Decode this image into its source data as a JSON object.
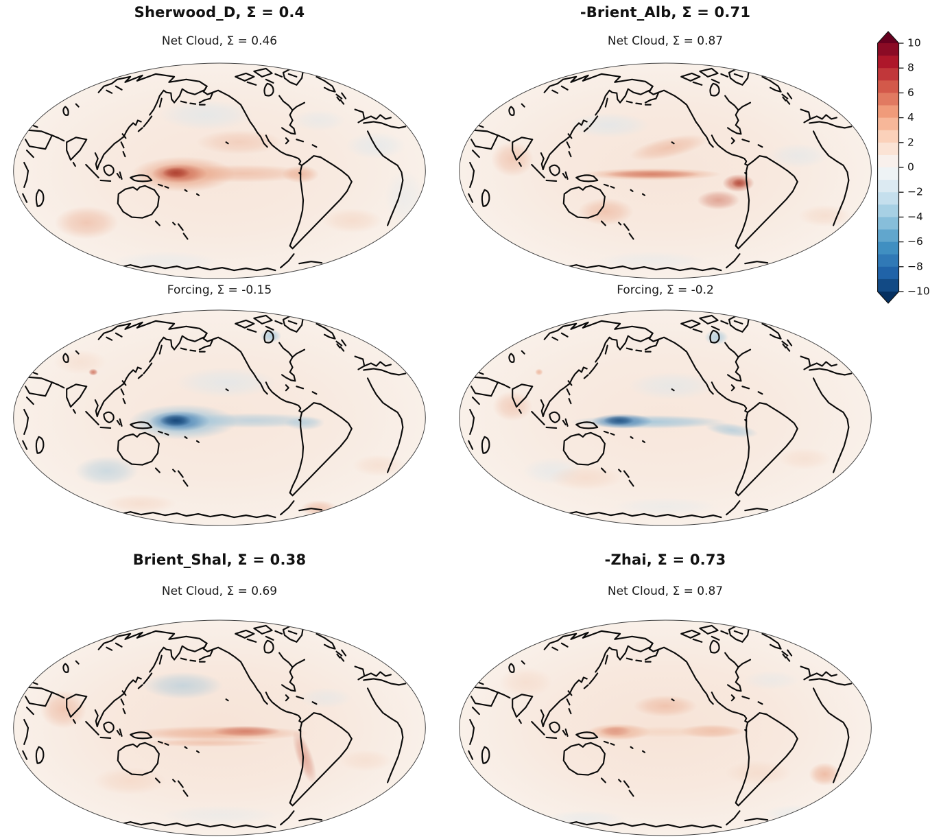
{
  "figure": {
    "background": "#ffffff"
  },
  "panels": [
    {
      "title": "Sherwood_D, Σ = 0.4",
      "subtitle": "Net Cloud, Σ = 0.46"
    },
    {
      "title": "-Brient_Alb, Σ = 0.71",
      "subtitle": "Net Cloud, Σ = 0.87"
    },
    {
      "subtitle": "Forcing, Σ = -0.15"
    },
    {
      "subtitle": "Forcing, Σ = -0.2"
    },
    {
      "title": "Brient_Shal, Σ = 0.38",
      "subtitle": "Net Cloud, Σ = 0.69"
    },
    {
      "title": "-Zhai, Σ = 0.73",
      "subtitle": "Net Cloud, Σ = 0.87"
    }
  ],
  "colorbar": {
    "range": [
      -10,
      10
    ],
    "extend": "both",
    "ticks": [
      "10",
      "8",
      "6",
      "4",
      "2",
      "0",
      "−2",
      "−4",
      "−6",
      "−8",
      "−10"
    ],
    "colors_low_to_high": [
      "#053061",
      "#124a85",
      "#2063a8",
      "#3079b6",
      "#408fc1",
      "#61a6cd",
      "#87beda",
      "#a7d0e4",
      "#c5dfed",
      "#dceaf2",
      "#eef3f5",
      "#f8f0ec",
      "#fbe3d5",
      "#fbd1ba",
      "#f7b799",
      "#f09b7a",
      "#e17a61",
      "#d3594a",
      "#c1373a",
      "#ae172a",
      "#8b0b25",
      "#67001f"
    ]
  },
  "chart_data": {
    "type": "heatmap",
    "subtype": "global anomaly maps, Mollweide projection, Pacific-centered",
    "colormap": "RdBu_r",
    "value_range": [
      -10,
      10
    ],
    "colorbar_ticks": [
      10,
      8,
      6,
      4,
      2,
      0,
      -2,
      -4,
      -6,
      -8,
      -10
    ],
    "grid": false,
    "legend_position": "right-colorbar",
    "panels": [
      {
        "row": 1,
        "col": 1,
        "predictor": "Sherwood_D",
        "sigma_predictor": 0.4,
        "field": "Net Cloud",
        "sigma_field": 0.46,
        "dominant_feature": "strong positive (red) anomaly centered on equatorial west-central Pacific with band extending east to South America; weak positive background"
      },
      {
        "row": 1,
        "col": 2,
        "predictor": "-Brient_Alb",
        "sigma_predictor": 0.71,
        "field": "Net Cloud",
        "sigma_field": 0.87,
        "dominant_feature": "narrow positive equatorial Pacific band intensifying near the South American west coast; diagonal positive streak in North Pacific"
      },
      {
        "row": 2,
        "col": 1,
        "predictor": "Sherwood_D",
        "field": "Forcing",
        "sigma_field": -0.15,
        "dominant_feature": "strong negative (dark blue) anomaly in equatorial west-central Pacific with negative band extending east"
      },
      {
        "row": 2,
        "col": 2,
        "predictor": "-Brient_Alb",
        "field": "Forcing",
        "sigma_field": -0.2,
        "dominant_feature": "narrow negative equatorial Pacific band reaching the South American coast; negative patch over Hudson Bay"
      },
      {
        "row": 3,
        "col": 1,
        "predictor": "Brient_Shal",
        "sigma_predictor": 0.38,
        "field": "Net Cloud",
        "sigma_field": 0.69,
        "dominant_feature": "moderate positive double-striped equatorial Pacific band; negative patch in central North Pacific"
      },
      {
        "row": 3,
        "col": 2,
        "predictor": "-Zhai",
        "sigma_predictor": 0.73,
        "field": "Net Cloud",
        "sigma_field": 0.87,
        "dominant_feature": "weak-to-moderate positive equatorial Pacific anomalies; small positive blob in South Atlantic"
      }
    ]
  }
}
